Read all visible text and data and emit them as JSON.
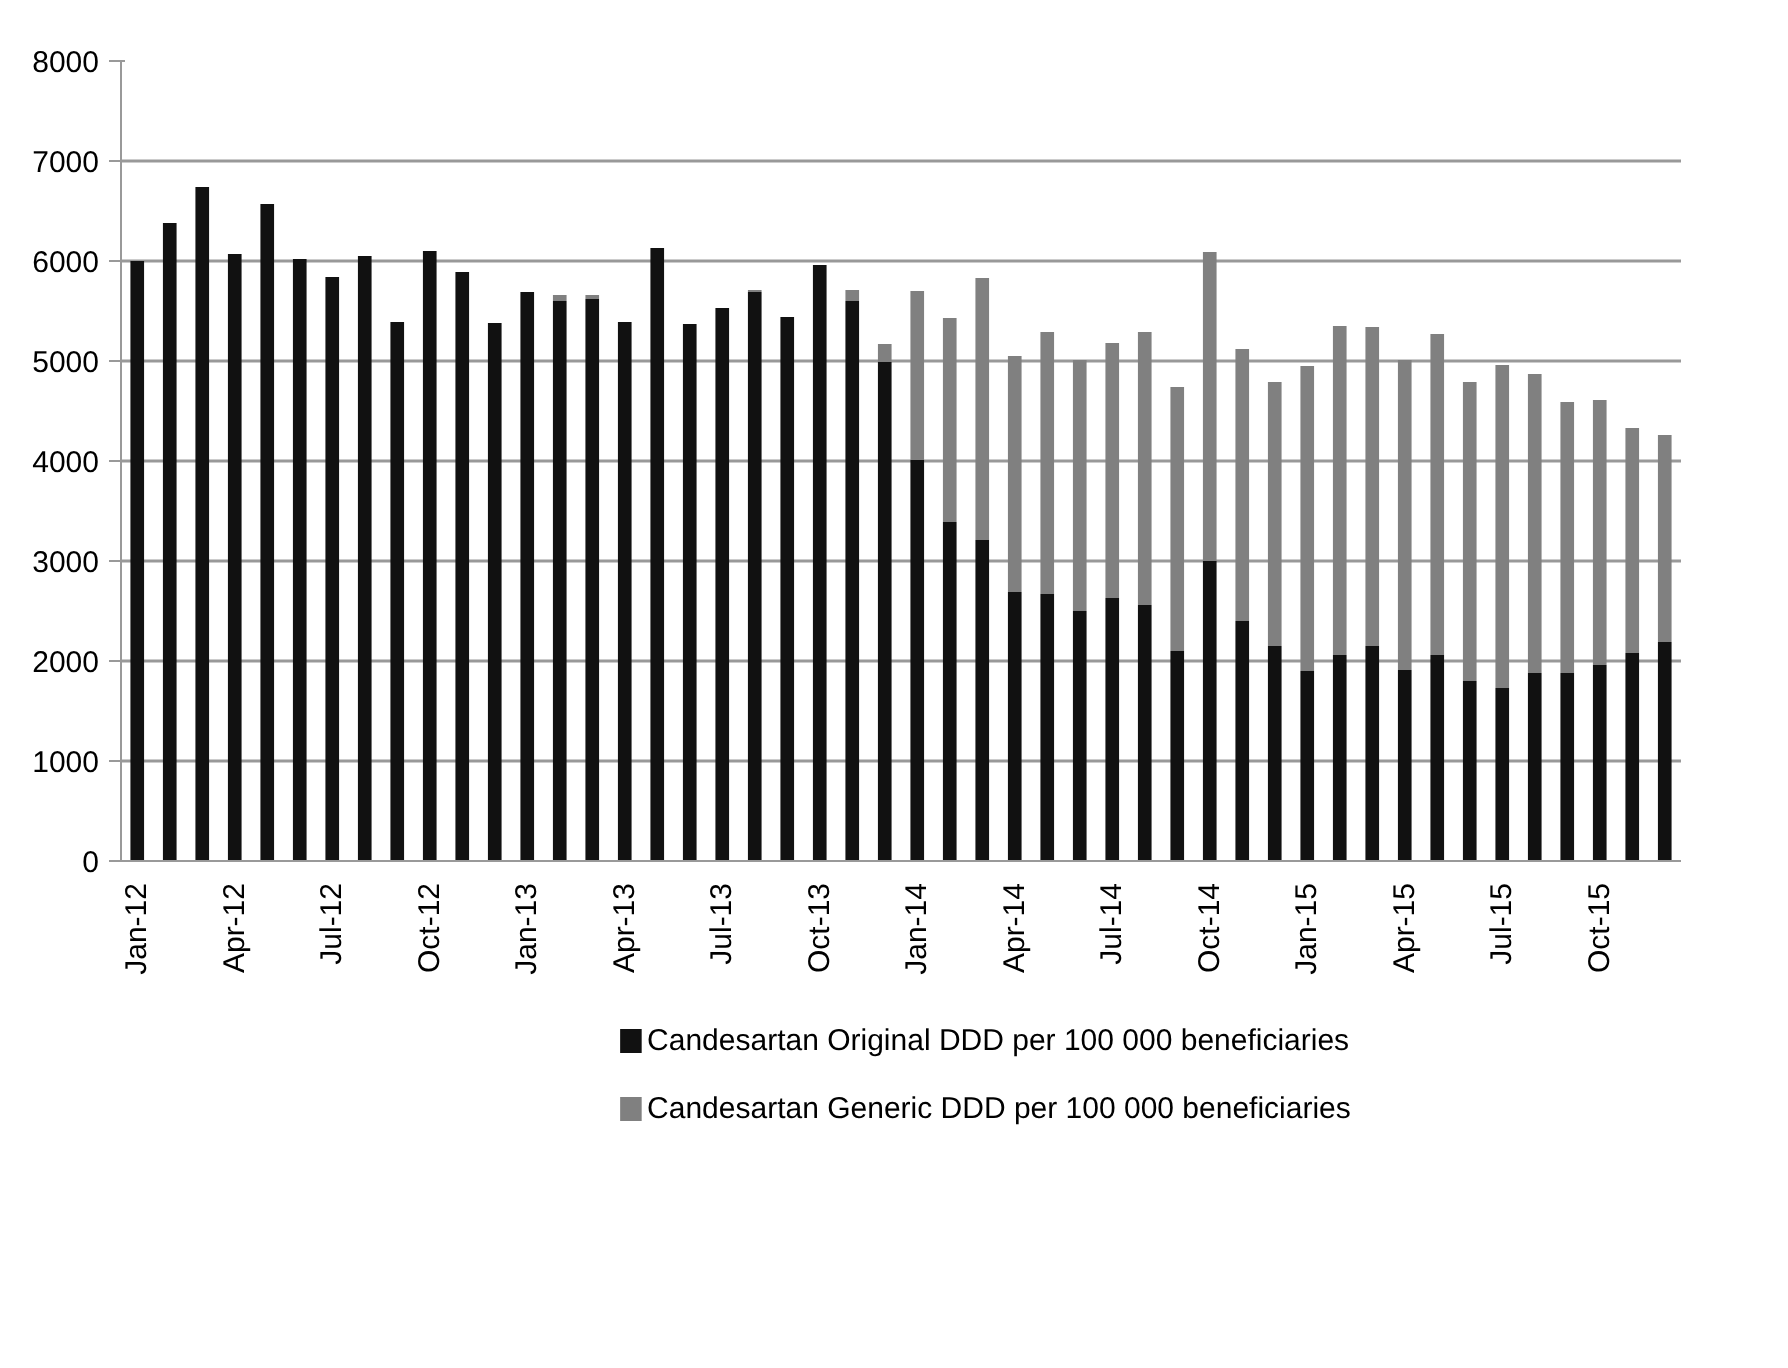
{
  "chart_data": {
    "type": "bar",
    "stacked": true,
    "categories": [
      "Jan-12",
      null,
      null,
      "Apr-12",
      null,
      null,
      "Jul-12",
      null,
      null,
      "Oct-12",
      null,
      null,
      "Jan-13",
      null,
      null,
      "Apr-13",
      null,
      null,
      "Jul-13",
      null,
      null,
      "Oct-13",
      null,
      null,
      "Jan-14",
      null,
      null,
      "Apr-14",
      null,
      null,
      "Jul-14",
      null,
      null,
      "Oct-14",
      null,
      null,
      "Jan-15",
      null,
      null,
      "Apr-15",
      null,
      null,
      "Jul-15",
      null,
      null,
      "Oct-15",
      null,
      null
    ],
    "series": [
      {
        "name": "Candesartan Original DDD per 100 000 beneficiaries",
        "color": "#111111",
        "values": [
          6000,
          6380,
          6740,
          6070,
          6570,
          6020,
          5840,
          6050,
          5390,
          6100,
          5890,
          5380,
          5690,
          5600,
          5620,
          5390,
          6130,
          5370,
          5530,
          5690,
          5440,
          5960,
          5600,
          4990,
          4010,
          3390,
          3210,
          2690,
          2670,
          2500,
          2630,
          2560,
          2100,
          3000,
          2400,
          2150,
          1900,
          2060,
          2150,
          1910,
          2060,
          1800,
          1730,
          1880,
          1880,
          1960,
          2080,
          2190
        ]
      },
      {
        "name": "Candesartan Generic DDD per 100 000 beneficiaries",
        "color": "#808080",
        "values": [
          0,
          0,
          0,
          0,
          0,
          0,
          0,
          0,
          0,
          0,
          0,
          0,
          0,
          60,
          40,
          0,
          0,
          0,
          0,
          20,
          0,
          0,
          110,
          180,
          1690,
          2040,
          2620,
          2360,
          2620,
          2510,
          2550,
          2730,
          2640,
          3090,
          2720,
          2640,
          3050,
          3290,
          3190,
          3100,
          3210,
          2990,
          3230,
          2990,
          2710,
          2650,
          2250,
          2070
        ]
      }
    ],
    "ylim": [
      0,
      8000
    ],
    "yticks": [
      0,
      1000,
      2000,
      3000,
      4000,
      5000,
      6000,
      7000,
      8000
    ],
    "grid": "y",
    "legend": "bottom"
  }
}
